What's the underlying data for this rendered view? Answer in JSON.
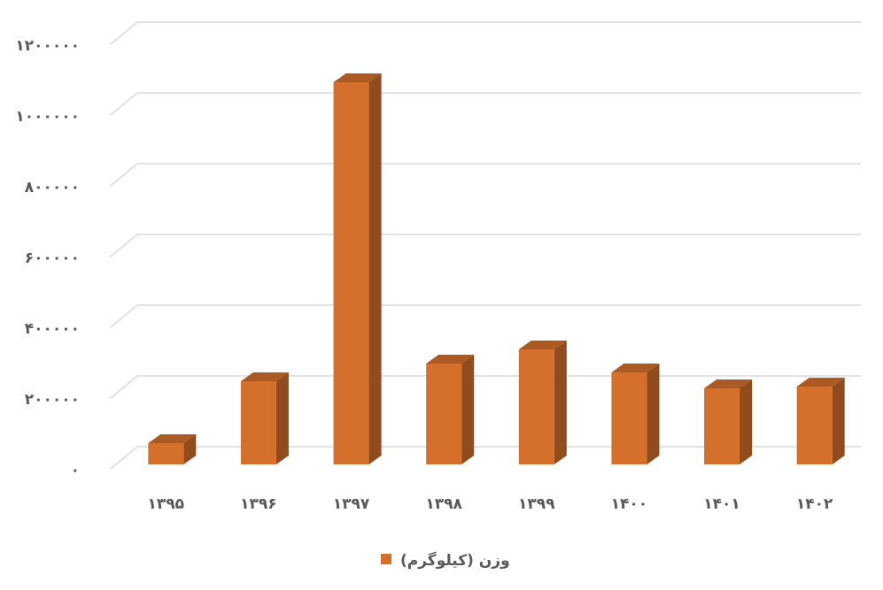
{
  "chart_data": {
    "type": "bar3d",
    "categories": [
      "۱۳۹۵",
      "۱۳۹۶",
      "۱۳۹۷",
      "۱۳۹۸",
      "۱۳۹۹",
      "۱۴۰۰",
      "۱۴۰۱",
      "۱۴۰۲"
    ],
    "series": [
      {
        "name": "وزن (کیلوگرم)",
        "color": "#d4702b",
        "values": [
          60000,
          235000,
          1080000,
          285000,
          325000,
          260000,
          215000,
          220000
        ]
      }
    ],
    "ylim": [
      0,
      1200000
    ],
    "yticks": [
      {
        "value": 0,
        "label": "۰"
      },
      {
        "value": 200000,
        "label": "۲۰۰۰۰۰"
      },
      {
        "value": 400000,
        "label": "۴۰۰۰۰۰"
      },
      {
        "value": 600000,
        "label": "۶۰۰۰۰۰"
      },
      {
        "value": 800000,
        "label": "۸۰۰۰۰۰"
      },
      {
        "value": 1000000,
        "label": "۱۰۰۰۰۰۰"
      },
      {
        "value": 1200000,
        "label": "۱۲۰۰۰۰۰"
      }
    ],
    "grid": true,
    "legend": "bottom"
  }
}
